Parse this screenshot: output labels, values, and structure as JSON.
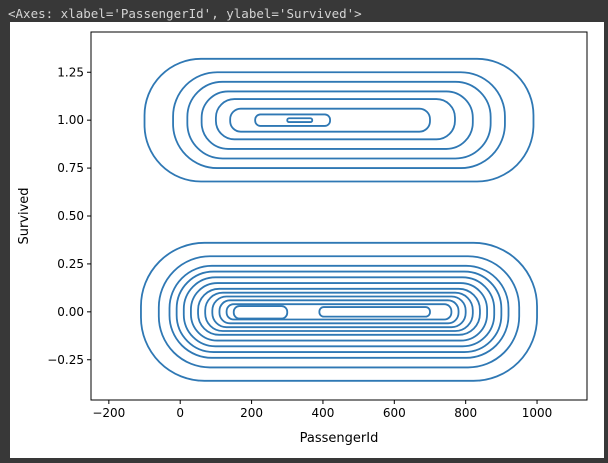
{
  "output_repr": "<Axes: xlabel='PassengerId', ylabel='Survived'>",
  "chart_data": {
    "type": "contour",
    "kind": "kde",
    "title": "",
    "xlabel": "PassengerId",
    "ylabel": "Survived",
    "xlim": [
      -250,
      1140
    ],
    "ylim": [
      -0.46,
      1.46
    ],
    "xticks": [
      -200,
      0,
      200,
      400,
      600,
      800,
      1000
    ],
    "xtick_labels": [
      "−200",
      "0",
      "200",
      "400",
      "600",
      "800",
      "1000"
    ],
    "yticks": [
      -0.25,
      0.0,
      0.25,
      0.5,
      0.75,
      1.0,
      1.25
    ],
    "ytick_labels": [
      "−0.25",
      "0.00",
      "0.25",
      "0.50",
      "0.75",
      "1.00",
      "1.25"
    ],
    "line_color": "#2f78b4",
    "grid": false,
    "groups": [
      {
        "y_center": 1.0,
        "levels": [
          {
            "x_range": [
              -100,
              990
            ],
            "y_range": [
              0.68,
              1.32
            ]
          },
          {
            "x_range": [
              -20,
              910
            ],
            "y_range": [
              0.75,
              1.25
            ]
          },
          {
            "x_range": [
              20,
              870
            ],
            "y_range": [
              0.8,
              1.2
            ]
          },
          {
            "x_range": [
              60,
              820
            ],
            "y_range": [
              0.85,
              1.15
            ]
          },
          {
            "x_range": [
              100,
              770
            ],
            "y_range": [
              0.9,
              1.11
            ]
          },
          {
            "x_range": [
              140,
              700
            ],
            "y_range": [
              0.94,
              1.06
            ]
          },
          {
            "x_range": [
              210,
              420
            ],
            "y_range": [
              0.97,
              1.03
            ]
          },
          {
            "x_range": [
              300,
              370
            ],
            "y_range": [
              0.99,
              1.01
            ]
          }
        ]
      },
      {
        "y_center": 0.0,
        "levels": [
          {
            "x_range": [
              -110,
              1000
            ],
            "y_range": [
              -0.36,
              0.36
            ]
          },
          {
            "x_range": [
              -60,
              950
            ],
            "y_range": [
              -0.29,
              0.29
            ]
          },
          {
            "x_range": [
              -30,
              920
            ],
            "y_range": [
              -0.24,
              0.24
            ]
          },
          {
            "x_range": [
              -10,
              900
            ],
            "y_range": [
              -0.21,
              0.21
            ]
          },
          {
            "x_range": [
              10,
              880
            ],
            "y_range": [
              -0.18,
              0.18
            ]
          },
          {
            "x_range": [
              30,
              860
            ],
            "y_range": [
              -0.15,
              0.15
            ]
          },
          {
            "x_range": [
              50,
              840
            ],
            "y_range": [
              -0.12,
              0.12
            ]
          },
          {
            "x_range": [
              70,
              820
            ],
            "y_range": [
              -0.1,
              0.1
            ]
          },
          {
            "x_range": [
              90,
              800
            ],
            "y_range": [
              -0.08,
              0.08
            ]
          },
          {
            "x_range": [
              110,
              780
            ],
            "y_range": [
              -0.06,
              0.06
            ]
          },
          {
            "x_range": [
              130,
              760
            ],
            "y_range": [
              -0.04,
              0.04
            ]
          }
        ],
        "inner": [
          {
            "x_range": [
              150,
              300
            ],
            "y_range": [
              -0.035,
              0.03
            ]
          },
          {
            "x_range": [
              390,
              700
            ],
            "y_range": [
              -0.025,
              0.025
            ]
          }
        ]
      }
    ]
  }
}
